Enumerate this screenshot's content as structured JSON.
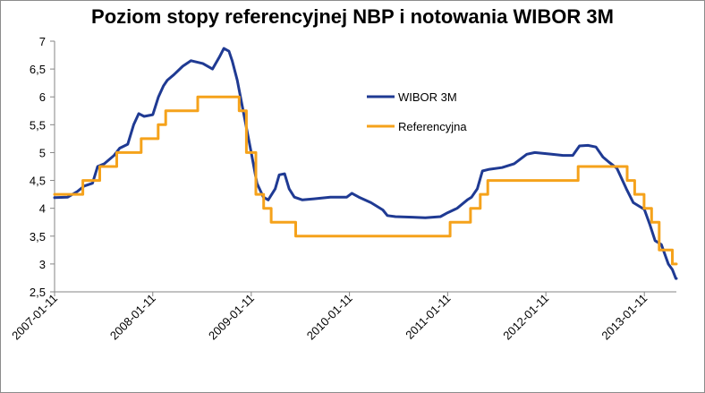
{
  "chart_data": {
    "type": "line",
    "title": "Poziom stopy referencyjnej NBP i notowania WIBOR 3M",
    "xlabel": "",
    "ylabel": "",
    "ylim": [
      2.5,
      7
    ],
    "y_ticks": [
      "7",
      "6,5",
      "6",
      "5,5",
      "5",
      "4,5",
      "4",
      "3,5",
      "3",
      "2,5"
    ],
    "x_range": [
      "2007-01-11",
      "2013-05-10"
    ],
    "x_ticks": [
      "2007-01-11",
      "2008-01-11",
      "2009-01-11",
      "2010-01-11",
      "2011-01-11",
      "2012-01-11",
      "2013-01-11"
    ],
    "grid": "none",
    "legend_position": "right",
    "colors": {
      "wibor": "#1f3a93",
      "ref": "#f5a21b"
    },
    "series": [
      {
        "name": "WIBOR 3M",
        "style": "line",
        "points": [
          [
            "2007-01-11",
            4.19
          ],
          [
            "2007-03-01",
            4.2
          ],
          [
            "2007-04-05",
            4.3
          ],
          [
            "2007-05-01",
            4.4
          ],
          [
            "2007-06-01",
            4.45
          ],
          [
            "2007-06-20",
            4.75
          ],
          [
            "2007-07-15",
            4.8
          ],
          [
            "2007-08-20",
            4.95
          ],
          [
            "2007-09-10",
            5.08
          ],
          [
            "2007-10-10",
            5.15
          ],
          [
            "2007-11-01",
            5.5
          ],
          [
            "2007-11-20",
            5.7
          ],
          [
            "2007-12-10",
            5.65
          ],
          [
            "2008-01-11",
            5.68
          ],
          [
            "2008-02-01",
            6.0
          ],
          [
            "2008-02-20",
            6.2
          ],
          [
            "2008-03-05",
            6.3
          ],
          [
            "2008-03-30",
            6.4
          ],
          [
            "2008-05-01",
            6.55
          ],
          [
            "2008-06-01",
            6.65
          ],
          [
            "2008-07-15",
            6.6
          ],
          [
            "2008-08-20",
            6.5
          ],
          [
            "2008-09-15",
            6.72
          ],
          [
            "2008-10-01",
            6.87
          ],
          [
            "2008-10-20",
            6.82
          ],
          [
            "2008-11-01",
            6.65
          ],
          [
            "2008-11-20",
            6.3
          ],
          [
            "2008-12-10",
            5.8
          ],
          [
            "2009-01-11",
            5.0
          ],
          [
            "2009-02-01",
            4.45
          ],
          [
            "2009-02-25",
            4.2
          ],
          [
            "2009-03-15",
            4.15
          ],
          [
            "2009-04-10",
            4.35
          ],
          [
            "2009-04-25",
            4.6
          ],
          [
            "2009-05-15",
            4.62
          ],
          [
            "2009-06-01",
            4.35
          ],
          [
            "2009-06-20",
            4.2
          ],
          [
            "2009-07-20",
            4.15
          ],
          [
            "2009-09-01",
            4.17
          ],
          [
            "2009-11-01",
            4.2
          ],
          [
            "2010-01-01",
            4.2
          ],
          [
            "2010-01-20",
            4.27
          ],
          [
            "2010-02-15",
            4.2
          ],
          [
            "2010-04-01",
            4.1
          ],
          [
            "2010-05-15",
            3.97
          ],
          [
            "2010-06-01",
            3.87
          ],
          [
            "2010-07-01",
            3.85
          ],
          [
            "2010-09-01",
            3.84
          ],
          [
            "2010-10-20",
            3.83
          ],
          [
            "2010-12-15",
            3.85
          ],
          [
            "2011-01-11",
            3.92
          ],
          [
            "2011-02-15",
            4.0
          ],
          [
            "2011-03-25",
            4.15
          ],
          [
            "2011-04-10",
            4.2
          ],
          [
            "2011-05-01",
            4.35
          ],
          [
            "2011-05-20",
            4.67
          ],
          [
            "2011-06-15",
            4.7
          ],
          [
            "2011-08-01",
            4.73
          ],
          [
            "2011-09-15",
            4.8
          ],
          [
            "2011-11-01",
            4.97
          ],
          [
            "2011-12-01",
            5.0
          ],
          [
            "2012-02-01",
            4.97
          ],
          [
            "2012-03-15",
            4.95
          ],
          [
            "2012-04-20",
            4.95
          ],
          [
            "2012-05-15",
            5.12
          ],
          [
            "2012-06-15",
            5.13
          ],
          [
            "2012-07-15",
            5.1
          ],
          [
            "2012-08-10",
            4.92
          ],
          [
            "2012-09-01",
            4.83
          ],
          [
            "2012-10-01",
            4.72
          ],
          [
            "2012-11-05",
            4.35
          ],
          [
            "2012-12-01",
            4.1
          ],
          [
            "2013-01-11",
            3.98
          ],
          [
            "2013-02-01",
            3.7
          ],
          [
            "2013-02-20",
            3.42
          ],
          [
            "2013-03-15",
            3.35
          ],
          [
            "2013-04-10",
            3.0
          ],
          [
            "2013-04-25",
            2.9
          ],
          [
            "2013-05-08",
            2.74
          ],
          [
            "2013-05-10",
            2.74
          ]
        ]
      },
      {
        "name": "Referencyjna",
        "style": "step",
        "points": [
          [
            "2007-01-11",
            4.25
          ],
          [
            "2007-04-26",
            4.5
          ],
          [
            "2007-06-28",
            4.75
          ],
          [
            "2007-08-30",
            5.0
          ],
          [
            "2007-11-29",
            5.25
          ],
          [
            "2008-01-31",
            5.5
          ],
          [
            "2008-02-28",
            5.75
          ],
          [
            "2008-06-26",
            6.0
          ],
          [
            "2008-11-27",
            5.75
          ],
          [
            "2008-12-24",
            5.0
          ],
          [
            "2009-01-28",
            4.25
          ],
          [
            "2009-02-26",
            4.0
          ],
          [
            "2009-03-26",
            3.75
          ],
          [
            "2009-06-25",
            3.5
          ],
          [
            "2011-01-20",
            3.75
          ],
          [
            "2011-04-06",
            4.0
          ],
          [
            "2011-05-12",
            4.25
          ],
          [
            "2011-06-09",
            4.5
          ],
          [
            "2012-05-10",
            4.75
          ],
          [
            "2012-11-08",
            4.5
          ],
          [
            "2012-12-06",
            4.25
          ],
          [
            "2013-01-10",
            4.0
          ],
          [
            "2013-02-07",
            3.75
          ],
          [
            "2013-03-07",
            3.25
          ],
          [
            "2013-04-25",
            3.0
          ],
          [
            "2013-05-10",
            3.0
          ]
        ]
      }
    ]
  }
}
